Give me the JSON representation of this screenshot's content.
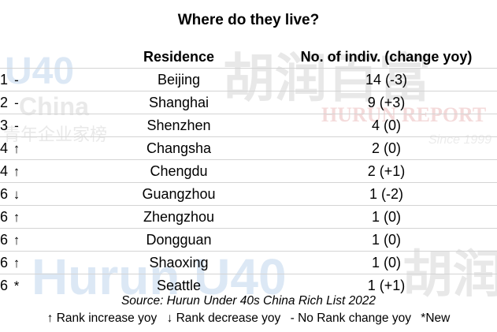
{
  "title": "Where do they live?",
  "columns": {
    "rank": "",
    "residence": "Residence",
    "count": "No. of indiv. (change yoy)"
  },
  "rows": [
    {
      "rank": "1",
      "indicator": "-",
      "residence": "Beijing",
      "count": "14 (-3)"
    },
    {
      "rank": "2",
      "indicator": "-",
      "residence": "Shanghai",
      "count": "9 (+3)"
    },
    {
      "rank": "3",
      "indicator": "-",
      "residence": "Shenzhen",
      "count": "4 (0)"
    },
    {
      "rank": "4",
      "indicator": "↑",
      "residence": "Changsha",
      "count": "2 (0)"
    },
    {
      "rank": "4",
      "indicator": "↑",
      "residence": "Chengdu",
      "count": "2 (+1)"
    },
    {
      "rank": "6",
      "indicator": "↓",
      "residence": "Guangzhou",
      "count": "1 (-2)"
    },
    {
      "rank": "6",
      "indicator": "↑",
      "residence": "Zhengzhou",
      "count": "1 (0)"
    },
    {
      "rank": "6",
      "indicator": "↑",
      "residence": "Dongguan",
      "count": "1 (0)"
    },
    {
      "rank": "6",
      "indicator": "↑",
      "residence": "Shaoxing",
      "count": "1 (0)"
    },
    {
      "rank": "6",
      "indicator": "*",
      "residence": "Seattle",
      "count": "1 (+1)"
    }
  ],
  "source": "Source: Hurun Under 40s China Rich List 2022",
  "legend": {
    "increase": "↑ Rank increase yoy",
    "decrease": "↓ Rank decrease yoy",
    "nochange": "- No Rank change yoy",
    "new": "*New"
  },
  "watermarks": {
    "u40_latin": "U40",
    "u40_china": "China",
    "u40_cn": "青年企业家榜",
    "hurun_cn": "胡润百富",
    "hurun_report": "HURUN REPORT",
    "since": "Since 1999",
    "hurun_latin": "Hurun U40",
    "hurun_cn_short": "胡润"
  },
  "colors": {
    "watermark": "#e6e6e6",
    "watermark_blue": "#dce8f5",
    "watermark_red": "#f4dada",
    "rule": "#d4d4d4"
  },
  "icons": {
    "increase": "up-arrow-icon",
    "decrease": "down-arrow-icon",
    "nochange": "dash-icon",
    "new": "asterisk-icon"
  }
}
